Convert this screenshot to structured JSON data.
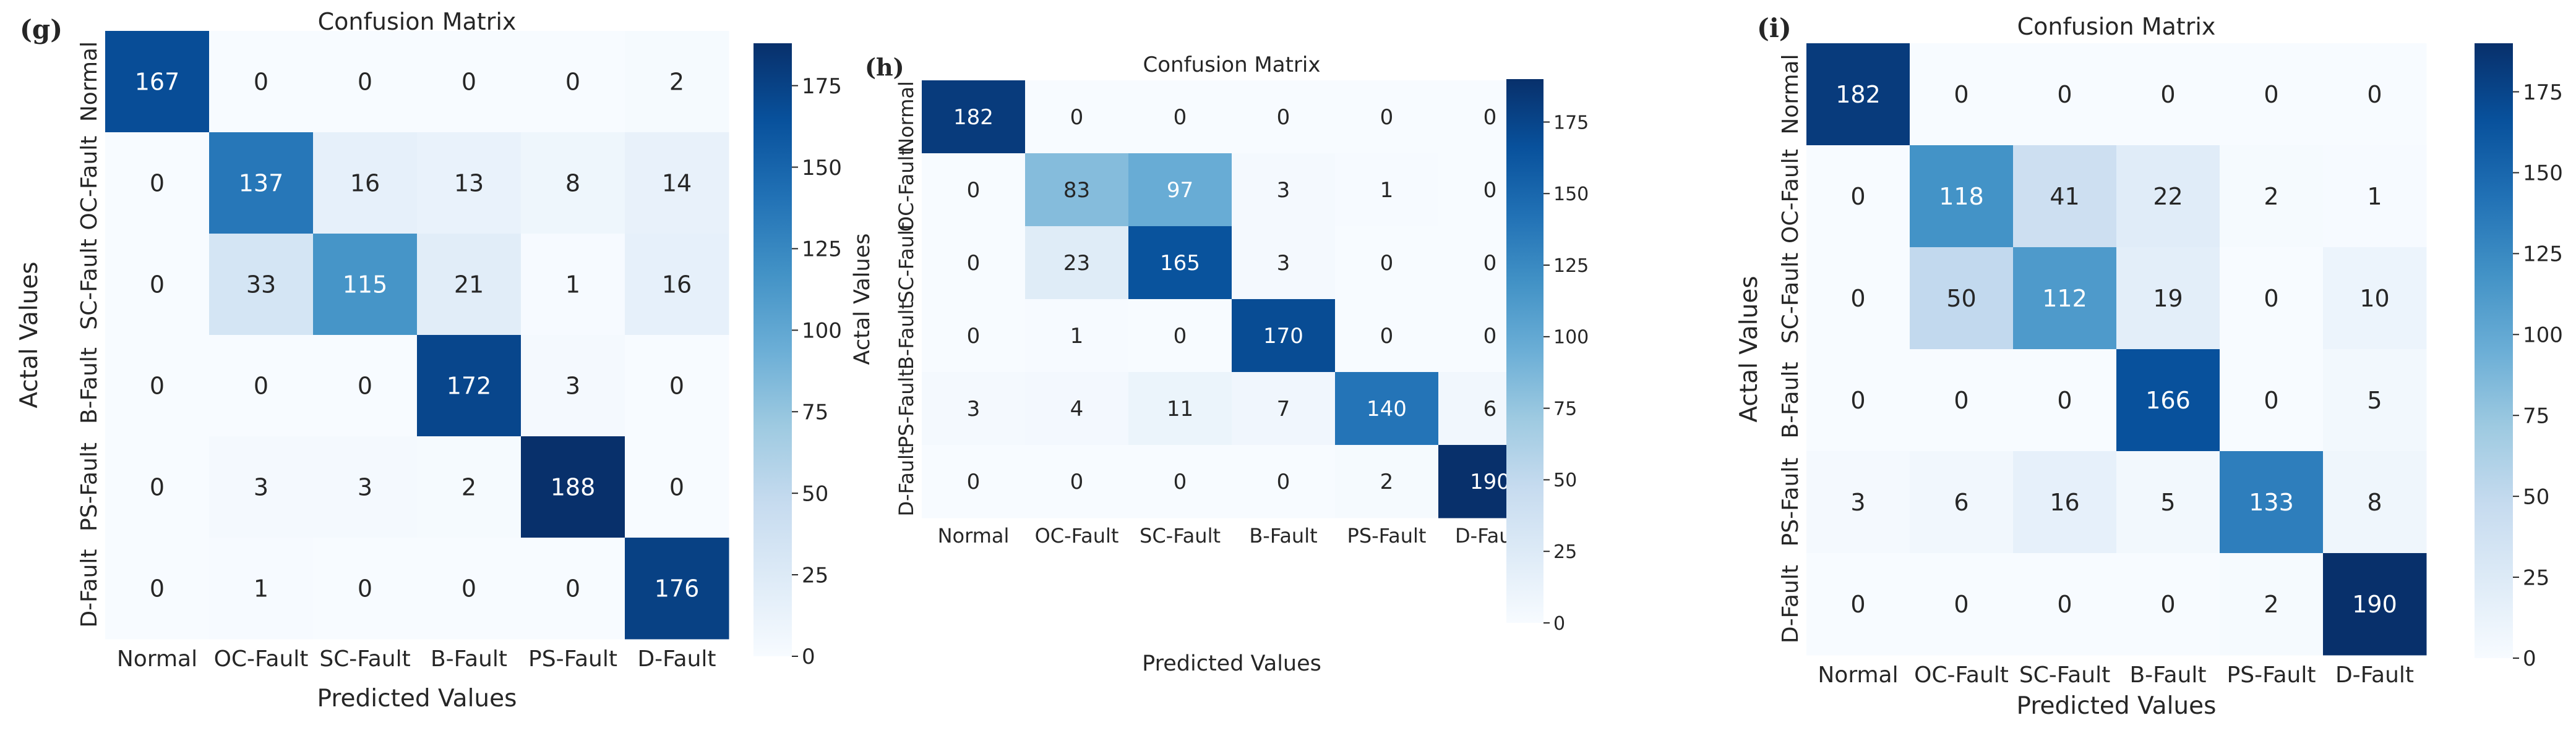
{
  "figure": {
    "categories": [
      "Normal",
      "OC-Fault",
      "SC-Fault",
      "B-Fault",
      "PS-Fault",
      "D-Fault"
    ],
    "colormap": {
      "name": "Blues",
      "low": "#f7fbff",
      "high": "#08306b"
    }
  },
  "chart_data": [
    {
      "type": "heatmap",
      "panel": "(g)",
      "title": "Confusion Matrix",
      "xlabel": "Predicted Values",
      "ylabel": "Actal Values",
      "x_categories": [
        "Normal",
        "OC-Fault",
        "SC-Fault",
        "B-Fault",
        "PS-Fault",
        "D-Fault"
      ],
      "y_categories": [
        "Normal",
        "OC-Fault",
        "SC-Fault",
        "B-Fault",
        "PS-Fault",
        "D-Fault"
      ],
      "values": [
        [
          167,
          0,
          0,
          0,
          0,
          2
        ],
        [
          0,
          137,
          16,
          13,
          8,
          14
        ],
        [
          0,
          33,
          115,
          21,
          1,
          16
        ],
        [
          0,
          0,
          0,
          172,
          3,
          0
        ],
        [
          0,
          3,
          3,
          2,
          188,
          0
        ],
        [
          0,
          1,
          0,
          0,
          0,
          176
        ]
      ],
      "colorbar": {
        "min": 0,
        "max": 188,
        "ticks": [
          0,
          25,
          50,
          75,
          100,
          125,
          150,
          175
        ]
      }
    },
    {
      "type": "heatmap",
      "panel": "(h)",
      "title": "Confusion Matrix",
      "xlabel": "Predicted Values",
      "ylabel": "Actal Values",
      "x_categories": [
        "Normal",
        "OC-Fault",
        "SC-Fault",
        "B-Fault",
        "PS-Fault",
        "D-Fault"
      ],
      "y_categories": [
        "Normal",
        "OC-Fault",
        "SC-Fault",
        "B-Fault",
        "PS-Fault",
        "D-Fault"
      ],
      "values": [
        [
          182,
          0,
          0,
          0,
          0,
          0
        ],
        [
          0,
          83,
          97,
          3,
          1,
          0
        ],
        [
          0,
          23,
          165,
          3,
          0,
          0
        ],
        [
          0,
          1,
          0,
          170,
          0,
          0
        ],
        [
          3,
          4,
          11,
          7,
          140,
          6
        ],
        [
          0,
          0,
          0,
          0,
          2,
          190
        ]
      ],
      "colorbar": {
        "min": 0,
        "max": 190,
        "ticks": [
          0,
          25,
          50,
          75,
          100,
          125,
          150,
          175
        ]
      }
    },
    {
      "type": "heatmap",
      "panel": "(i)",
      "title": "Confusion Matrix",
      "xlabel": "Predicted Values",
      "ylabel": "Actal Values",
      "x_categories": [
        "Normal",
        "OC-Fault",
        "SC-Fault",
        "B-Fault",
        "PS-Fault",
        "D-Fault"
      ],
      "y_categories": [
        "Normal",
        "OC-Fault",
        "SC-Fault",
        "B-Fault",
        "PS-Fault",
        "D-Fault"
      ],
      "values": [
        [
          182,
          0,
          0,
          0,
          0,
          0
        ],
        [
          0,
          118,
          41,
          22,
          2,
          1
        ],
        [
          0,
          50,
          112,
          19,
          0,
          10
        ],
        [
          0,
          0,
          0,
          166,
          0,
          5
        ],
        [
          3,
          6,
          16,
          5,
          133,
          8
        ],
        [
          0,
          0,
          0,
          0,
          2,
          190
        ]
      ],
      "colorbar": {
        "min": 0,
        "max": 190,
        "ticks": [
          0,
          25,
          50,
          75,
          100,
          125,
          150,
          175
        ]
      }
    }
  ]
}
